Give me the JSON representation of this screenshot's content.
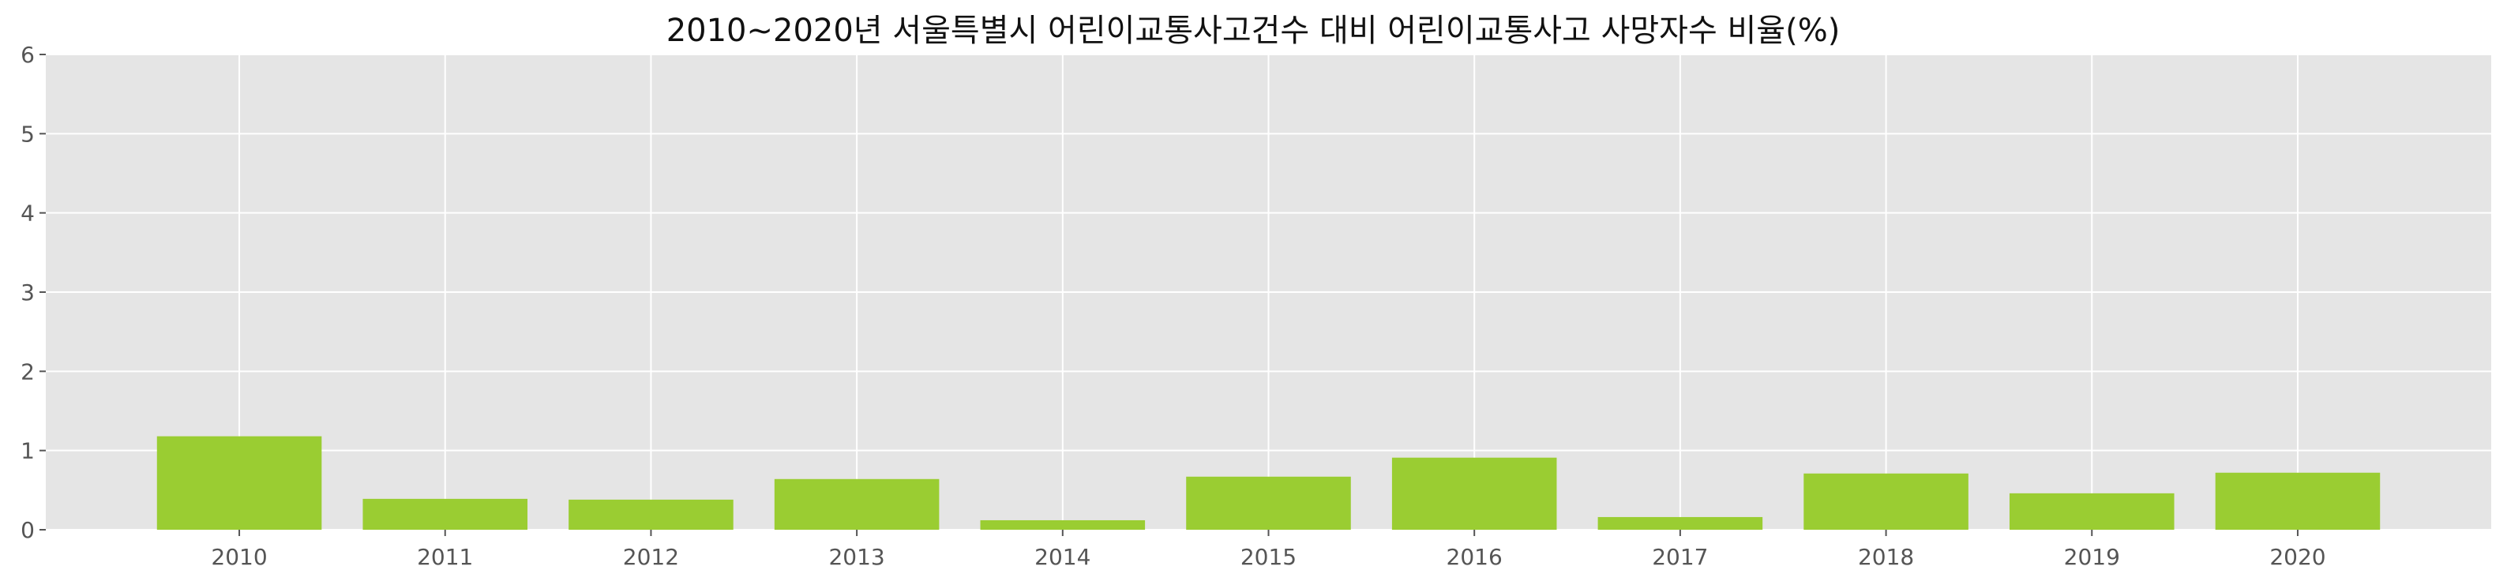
{
  "chart_data": {
    "type": "bar",
    "title": "2010~2020년 서울특별시 어린이교통사고건수 대비 어린이교통사고 사망자수 비율(%)",
    "xlabel": "",
    "ylabel": "",
    "categories": [
      "2010",
      "2011",
      "2012",
      "2013",
      "2014",
      "2015",
      "2016",
      "2017",
      "2018",
      "2019",
      "2020"
    ],
    "values": [
      1.18,
      0.39,
      0.38,
      0.64,
      0.12,
      0.67,
      0.91,
      0.16,
      0.71,
      0.46,
      0.72
    ],
    "ylim": [
      0,
      6
    ],
    "yticks": [
      0,
      1,
      2,
      3,
      4,
      5,
      6
    ],
    "grid": true,
    "colors": {
      "bar": "#9acd32",
      "plot_background": "#e5e5e5",
      "grid": "#ffffff"
    }
  }
}
